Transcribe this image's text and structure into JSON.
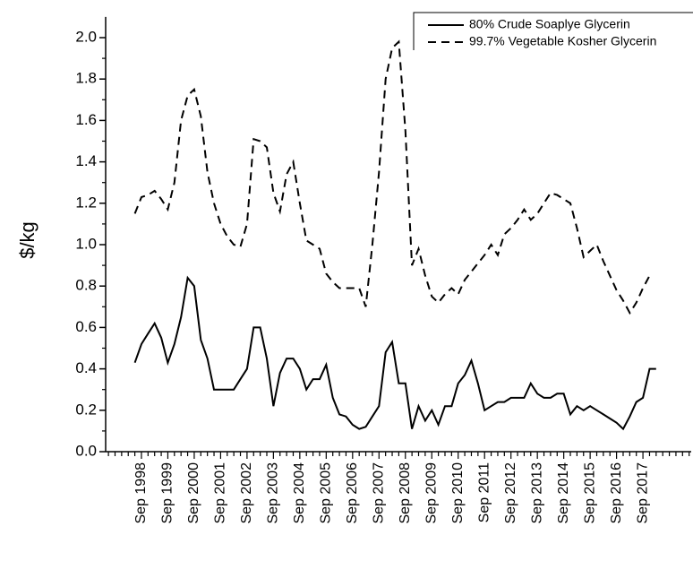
{
  "chart_data": {
    "type": "line",
    "y_label": "$/kg",
    "categories": [
      null,
      "Sep 1998",
      null,
      null,
      null,
      "Sep 1999",
      null,
      null,
      null,
      "Sep 2000",
      null,
      null,
      null,
      "Sep 2001",
      null,
      null,
      null,
      "Sep 2002",
      null,
      null,
      null,
      "Sep 2003",
      null,
      null,
      null,
      "Sep 2004",
      null,
      null,
      null,
      "Sep 2005",
      null,
      null,
      null,
      "Sep 2006",
      null,
      null,
      null,
      "Sep 2007",
      null,
      null,
      null,
      "Sep 2008",
      null,
      null,
      null,
      "Sep 2009",
      null,
      null,
      null,
      "Sep 2010",
      null,
      null,
      null,
      "Sep 2011",
      null,
      null,
      null,
      "Sep 2012",
      null,
      null,
      null,
      "Sep 2013",
      null,
      null,
      null,
      "Sep 2014",
      null,
      null,
      null,
      "Sep 2015",
      null,
      null,
      null,
      "Sep 2016",
      null,
      null,
      null,
      "Sep 2017",
      null,
      null
    ],
    "series": [
      {
        "name": "80% Crude Soaplye Glycerin",
        "color": "#000000",
        "dash": "solid",
        "values": [
          0.43,
          0.52,
          0.57,
          0.62,
          0.55,
          0.43,
          0.52,
          0.65,
          0.84,
          0.8,
          0.54,
          0.45,
          0.3,
          0.3,
          0.3,
          0.3,
          0.35,
          0.4,
          0.6,
          0.6,
          0.45,
          0.22,
          0.38,
          0.45,
          0.45,
          0.4,
          0.3,
          0.35,
          0.35,
          0.42,
          0.26,
          0.18,
          0.17,
          0.13,
          0.11,
          0.12,
          0.17,
          0.22,
          0.48,
          0.53,
          0.33,
          0.33,
          0.11,
          0.22,
          0.15,
          0.2,
          0.13,
          0.22,
          0.22,
          0.33,
          0.37,
          0.44,
          0.33,
          0.2,
          0.22,
          0.24,
          0.24,
          0.26,
          0.26,
          0.26,
          0.33,
          0.28,
          0.26,
          0.26,
          0.28,
          0.28,
          0.18,
          0.22,
          0.2,
          0.22,
          0.2,
          0.18,
          0.16,
          0.14,
          0.11,
          0.17,
          0.24,
          0.26,
          0.4,
          0.4
        ]
      },
      {
        "name": "99.7% Vegetable Kosher Glycerin",
        "color": "#000000",
        "dash": "dashed",
        "values": [
          1.15,
          1.23,
          1.24,
          1.26,
          1.22,
          1.17,
          1.3,
          1.6,
          1.72,
          1.75,
          1.62,
          1.35,
          1.2,
          1.1,
          1.04,
          1.0,
          0.99,
          1.1,
          1.51,
          1.5,
          1.47,
          1.25,
          1.16,
          1.34,
          1.4,
          1.2,
          1.02,
          1.0,
          0.98,
          0.86,
          0.82,
          0.79,
          0.79,
          0.79,
          0.79,
          0.7,
          1.0,
          1.35,
          1.8,
          1.95,
          1.98,
          1.55,
          0.9,
          0.98,
          0.85,
          0.75,
          0.72,
          0.76,
          0.79,
          0.76,
          0.83,
          0.87,
          0.91,
          0.95,
          1.0,
          0.95,
          1.05,
          1.08,
          1.12,
          1.17,
          1.12,
          1.15,
          1.2,
          1.25,
          1.24,
          1.22,
          1.2,
          1.08,
          0.94,
          0.97,
          1.0,
          0.92,
          0.85,
          0.78,
          0.73,
          0.67,
          0.72,
          0.79,
          0.85,
          null
        ]
      }
    ],
    "ylim": [
      0,
      2.1
    ],
    "yticks": [
      {
        "value": 0,
        "label": "0.0"
      },
      0.2,
      0.4,
      0.6,
      0.8,
      {
        "value": 1,
        "label": "1.0"
      },
      1.2,
      1.4,
      1.6,
      1.8,
      {
        "value": 2,
        "label": "2.0"
      }
    ],
    "legend": "top-right"
  }
}
